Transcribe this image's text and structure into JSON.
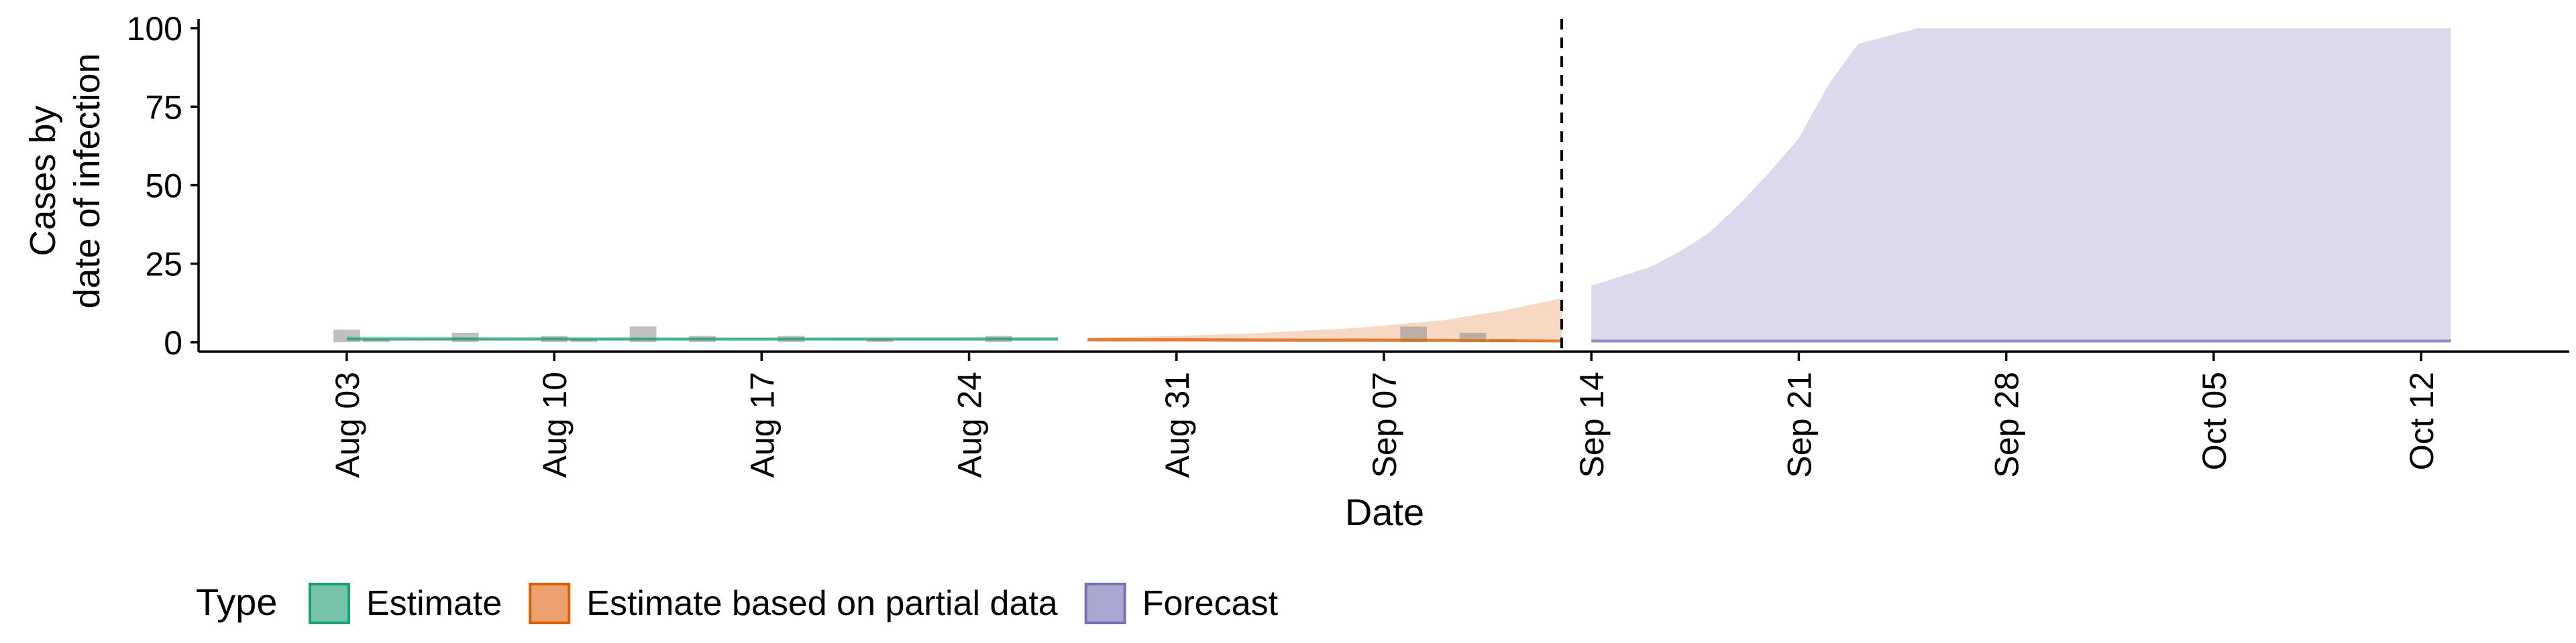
{
  "chart_data": {
    "type": "area",
    "title": "",
    "xlabel": "Date",
    "ylabel_lines": [
      "Cases by",
      "date of infection"
    ],
    "ylim": [
      -3,
      103
    ],
    "y_ticks": [
      0,
      25,
      50,
      75,
      100
    ],
    "x_range": [
      "2020-07-29",
      "2020-10-17"
    ],
    "x_ticks": [
      {
        "date": "2020-08-03",
        "label": "Aug 03"
      },
      {
        "date": "2020-08-10",
        "label": "Aug 10"
      },
      {
        "date": "2020-08-17",
        "label": "Aug 17"
      },
      {
        "date": "2020-08-24",
        "label": "Aug 24"
      },
      {
        "date": "2020-08-31",
        "label": "Aug 31"
      },
      {
        "date": "2020-09-07",
        "label": "Sep 07"
      },
      {
        "date": "2020-09-14",
        "label": "Sep 14"
      },
      {
        "date": "2020-09-21",
        "label": "Sep 21"
      },
      {
        "date": "2020-09-28",
        "label": "Sep 28"
      },
      {
        "date": "2020-10-05",
        "label": "Oct 05"
      },
      {
        "date": "2020-10-12",
        "label": "Oct 12"
      }
    ],
    "forecast_cutoff_date": "2020-09-13",
    "grid": false,
    "legend_position": "bottom",
    "legend": {
      "title": "Type",
      "entries": [
        {
          "label": "Estimate",
          "fill": "#75c3a9",
          "stroke": "#1b9e77"
        },
        {
          "label": "Estimate based on partial data",
          "fill": "#eda170",
          "stroke": "#d95f02"
        },
        {
          "label": "Forecast",
          "fill": "#aaa7d1",
          "stroke": "#7570b3"
        }
      ]
    },
    "reported_cases": [
      {
        "date": "2020-08-03",
        "value": 4
      },
      {
        "date": "2020-08-04",
        "value": 1
      },
      {
        "date": "2020-08-07",
        "value": 3
      },
      {
        "date": "2020-08-10",
        "value": 2
      },
      {
        "date": "2020-08-11",
        "value": 1
      },
      {
        "date": "2020-08-13",
        "value": 5
      },
      {
        "date": "2020-08-15",
        "value": 2
      },
      {
        "date": "2020-08-18",
        "value": 2
      },
      {
        "date": "2020-08-21",
        "value": 1
      },
      {
        "date": "2020-08-25",
        "value": 2
      },
      {
        "date": "2020-09-08",
        "value": 5
      },
      {
        "date": "2020-09-10",
        "value": 3
      },
      {
        "date": "2020-09-11",
        "value": 1
      }
    ],
    "series": [
      {
        "type_key": "Estimate",
        "color": "#1b9e77",
        "fill": "#75c3a9",
        "x": [
          "2020-08-03",
          "2020-08-10",
          "2020-08-17",
          "2020-08-24",
          "2020-08-27"
        ],
        "median": [
          1,
          1,
          1,
          1,
          1
        ],
        "lower": [
          0.5,
          0.5,
          0.5,
          0.5,
          0.5
        ],
        "upper": [
          1.8,
          1.6,
          1.5,
          1.6,
          1.6
        ]
      },
      {
        "type_key": "Estimate based on partial data",
        "color": "#d95f02",
        "fill": "#eda170",
        "x": [
          "2020-08-28",
          "2020-08-31",
          "2020-09-03",
          "2020-09-06",
          "2020-09-09",
          "2020-09-11",
          "2020-09-13"
        ],
        "median": [
          0.8,
          0.8,
          0.7,
          0.7,
          0.6,
          0.5,
          0.4
        ],
        "lower": [
          0.2,
          0.1,
          0.1,
          0,
          0,
          0,
          0
        ],
        "upper": [
          1.5,
          2,
          3,
          4.5,
          7,
          10,
          14
        ]
      },
      {
        "type_key": "Forecast",
        "color": "#7570b3",
        "fill": "#aaa7d1",
        "x": [
          "2020-09-14",
          "2020-09-15",
          "2020-09-16",
          "2020-09-17",
          "2020-09-18",
          "2020-09-19",
          "2020-09-20",
          "2020-09-21",
          "2020-09-22",
          "2020-09-23",
          "2020-09-25",
          "2020-09-27",
          "2020-10-13"
        ],
        "median": [
          0.4,
          0.4,
          0.4,
          0.4,
          0.4,
          0.4,
          0.4,
          0.4,
          0.4,
          0.4,
          0.4,
          0.4,
          0.4
        ],
        "lower": [
          0,
          0,
          0,
          0,
          0,
          0,
          0,
          0,
          0,
          0,
          0,
          0,
          0
        ],
        "upper": [
          18,
          21,
          24,
          29,
          35,
          44,
          54,
          65,
          82,
          95,
          100,
          100,
          100
        ]
      }
    ]
  }
}
